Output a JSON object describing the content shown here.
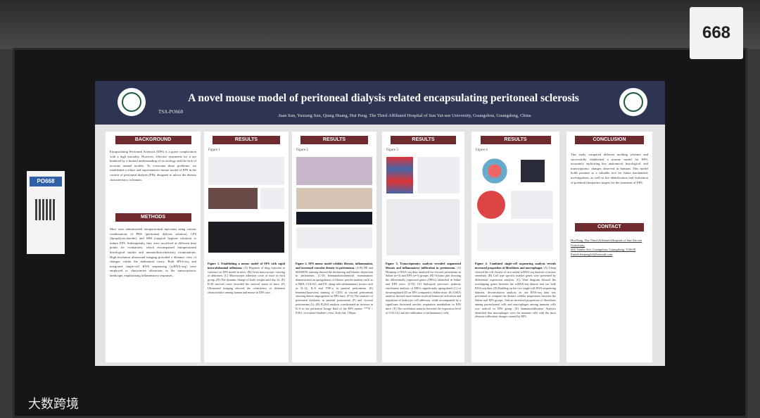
{
  "booth_number": "668",
  "side_card": {
    "code": "PO668"
  },
  "poster": {
    "title": "A novel mouse model of peritoneal dialysis related encapsulating peritoneal sclerosis",
    "code": "TSA-PO668",
    "authors": "Juan Sun, Yuxiang Sun, Qiang Huang, Hui Peng.  The Third Affiliated Hospital of Sun Yat-sen University, Guangzhou, Guangdong, China",
    "background": {
      "heading": "BACKGROUND",
      "text": "Encapsulating Peritoneal Sclerosis (EPS) is a grave complication with a high mortality. However, effective treatments for it are hindered by a limited understanding of its etiology and the lack of accurate animal models. To overcome these problems, we established a robust and representative mouse model of EPS in the context of peritoneal dialysis (PD), designed to mirror the disease characteristics in human."
    },
    "methods": {
      "heading": "METHODS",
      "text": "Mice were administered intraperitoneal injections using various combinations of PDS (peritoneal dialysis solution), LPS (lipopolysaccharide), and SHS (surgical hygiene solution) to induce EPS. Subsequently, they were sacrificed at different time points for evaluations, which encompassed intraperitoneal histological studies and immunohistochemistry examinations. High-resolution ultrasound imaging provided a dynamic view of changes within the abdominal cavity. Both RNA-seq and integrated single-cell RNA sequencing (scRNA-seq) were employed to characterize alterations in the transcriptomic landscape, emphasizing inflammatory responses."
    },
    "results": [
      {
        "heading": "RESULTS",
        "figure": "Figure 1",
        "caption_title": "Figure 1. Establishing a mouse model of EPS with rapid intra-abdominal adhesions.",
        "caption": "(A) Regimen of drug injection to construct an EPS model in mice. (B) Gross macroscopic viewing of abdomen. (C) Macroscopic adhesion score of mice in each group. (D) The dynamic change of body weight until day 22. (E) K-M survival curve recorded the survival status of mice. (F) Ultrasound imaging showed the consistency of abdomen characteristics among human and mouse in EPS case."
      },
      {
        "heading": "RESULTS",
        "figure": "Figure 2",
        "caption_title": "Figure 2. EPS mouse model exhibits fibrosis, inflammation, and increased vascular density in peritoneum.",
        "caption": "(A-B) HE and MASSON staining showed the thickening and fibrotic deposition in peritoneum. (C-D) Immunohistochemical examinations demonstrated an upregulation of fibrotic protein markers such as α-SMA, COLIA1, and FN, along with inflammatory factors such as IL-1β, IL-6 and TNF-α in parietal peritoneum. (E) Immunofluorescent staining of CD31 in visceral peritoneum showing denser angiogenesis in EPS mice. (F-G) The statistics of peritoneal thickness in parietal peritoneum (F) and visceral peritoneum (G). (H) ELISA analysis corroborated an increase in IL-6 in the peritoneal lavage fluid of the EPS mouse. ***P < 0.001, two-tailed Student's t-test. Scale bar, 100μm."
      },
      {
        "heading": "RESULTS",
        "figure": "Figure 3",
        "caption_title": "Figure 3. Transcriptomics analysis revealed augmented fibrosis and inflammatory infiltration in peritoneum.",
        "caption": "(A) Heatmap of RNA-seq data, analyzed for visceral peritoneum in Saline (n=3) and EPS (n=3) groups. (B) Volcano plot showing the differentially expressed genes (DEGs) identified in Saline and EPS mice. (C-D) GO biological processes pathway enrichment analysis of DEGs significantly upregulated (C) or downregulated (D) in EPS compared to Saline mice. (E) GSEA analysis showed more intense myeloid leukocyte activation and regulation of leukocyte cell adhesion, while accompanied by a significant decreased aerobic respiration metabolism in EPS mice. (F) The correlation analysis between the expression level of COL1A1 and the infiltration of inflammatory cells."
      },
      {
        "heading": "RESULTS",
        "figure": "Figure 4",
        "caption_title": "Figure 4. Combined single-cell sequencing analysis reveals increased proportion of fibroblasts and macrophages.",
        "caption": "(A) Umap showed the cell clusters of two online scRNA-seq datasets of mouse omentum. (B) Cell type specific marker genes were presented by differential expression analysis. (C) Venn diagram showed the overlapping genes between the scRNA-seq dataset and our bulk RNA-seq data. (D) Building on the two single-cell RNA sequencing datasets, deconvolution analysis on our RNA-seq data was performed to compare the distinct cellular proportions between the Saline and EPS groups. And an increased proportion of fibroblasts among parenchymal cells and macrophages among immune cells was noticed in EPS group. (E) Immunoinfiltration Analysis identified that macrophages were the immune cells with the most obvious infiltration changes caused by EPS."
      }
    ],
    "conclusion": {
      "heading": "CONCLUSION",
      "text": "This study compared different molding schemes and successfully established a murine model for EPS, accurately replicating key anatomical, histological, and transcriptomic changes observed in humans. This model holds promise as a valuable tool for future mechanistic investigations, as well as the identification and evaluation of potential therapeutic targets for the treatment of EPS."
    },
    "contact": {
      "heading": "CONTACT",
      "lines": [
        "Hui Peng, The Third Affiliated Hospital of Sun Yat-sen University,",
        "600 Tianhe Ave, Guangzhou, Guangdong, 510630",
        "Email:zhzpengh1@hotmail.com"
      ]
    }
  },
  "watermark": "大数跨境"
}
